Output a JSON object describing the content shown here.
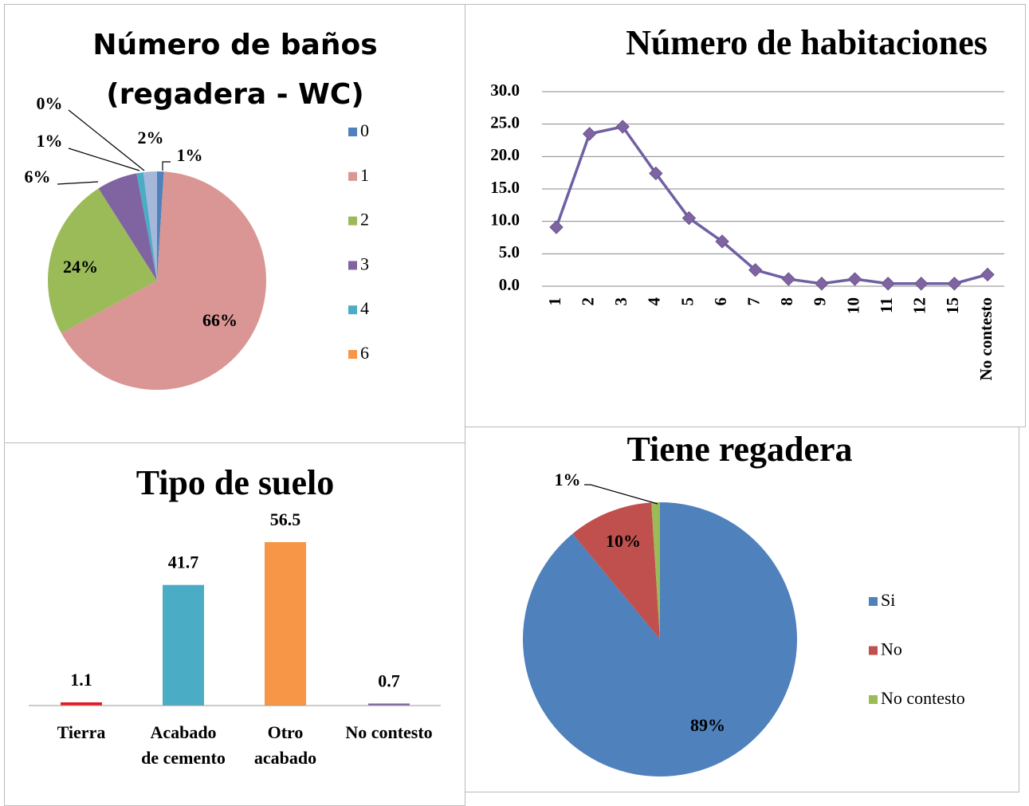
{
  "chart_data": [
    {
      "type": "pie",
      "title": "Número de baños (regadera - WC)",
      "categories": [
        "0",
        "1",
        "2",
        "3",
        "4",
        "6",
        null
      ],
      "values": [
        1,
        66,
        24,
        6,
        1,
        0,
        2
      ],
      "value_labels": [
        "1%",
        "66%",
        "24%",
        "6%",
        "1%",
        "0%",
        "2%"
      ],
      "colors": [
        "#4f81bd",
        "#d99694",
        "#9bbb59",
        "#8064a2",
        "#4bacc6",
        "#f79646",
        "#a5b8da"
      ],
      "legend": "right"
    },
    {
      "type": "line",
      "title": "Número de habitaciones",
      "categories": [
        "1",
        "2",
        "3",
        "4",
        "5",
        "6",
        "7",
        "8",
        "9",
        "10",
        "11",
        "12",
        "15",
        "No contesto"
      ],
      "series": [
        {
          "name": null,
          "color": "#7060a3",
          "values": [
            9.1,
            23.5,
            24.6,
            17.4,
            10.5,
            6.9,
            2.5,
            1.1,
            0.4,
            1.1,
            0.4,
            0.4,
            0.4,
            1.8
          ]
        }
      ],
      "ylim": [
        0,
        30
      ],
      "yticks": [
        {
          "value": 0,
          "label": "0.0"
        },
        {
          "value": 5,
          "label": "5.0"
        },
        {
          "value": 10,
          "label": "10.0"
        },
        {
          "value": 15,
          "label": "15.0"
        },
        {
          "value": 20,
          "label": "20.0"
        },
        {
          "value": 25,
          "label": "25.0"
        },
        {
          "value": 30,
          "label": "30.0"
        }
      ],
      "grid": true
    },
    {
      "type": "bar",
      "title": "Tipo de suelo",
      "categories": [
        "Tierra",
        "Acabado de cemento",
        "Otro acabado",
        "No contesto"
      ],
      "values": [
        1.1,
        41.7,
        56.5,
        0.7
      ],
      "colors": [
        "#e8191e",
        "#4bacc6",
        "#f79646",
        "#8064a2"
      ]
    },
    {
      "type": "pie",
      "title": "Tiene regadera",
      "categories": [
        "Si",
        "No",
        "No contesto"
      ],
      "values": [
        89,
        10,
        1
      ],
      "value_labels": [
        "89%",
        "10%",
        "1%"
      ],
      "colors": [
        "#4f81bd",
        "#c0504d",
        "#9bbb59"
      ],
      "legend": "right"
    }
  ]
}
